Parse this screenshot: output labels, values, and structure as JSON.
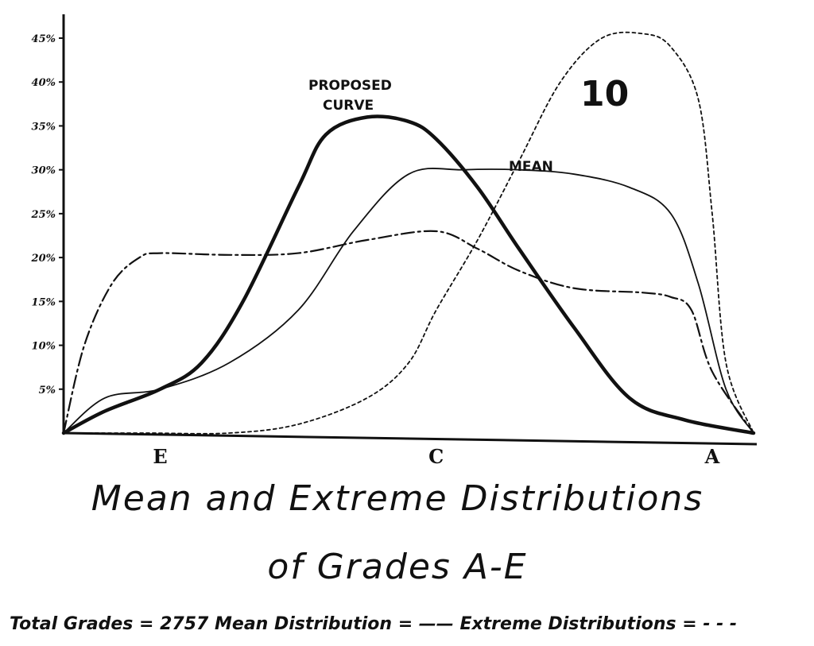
{
  "chart_data": {
    "type": "line",
    "figure_number": "10",
    "title_line1": "Mean and Extreme Distributions",
    "title_line2": "of Grades A-E",
    "footer": "Total Grades = 2757  Mean Distribution = ——  Extreme Distributions = - - -",
    "y_ticks": [
      "45%",
      "40%",
      "35%",
      "30%",
      "25%",
      "20%",
      "15%",
      "10%",
      "5%"
    ],
    "y_tick_values": [
      45,
      40,
      35,
      30,
      25,
      20,
      15,
      10,
      5
    ],
    "ylim": [
      0,
      45
    ],
    "x_tick_labels": [
      "E",
      "C",
      "A"
    ],
    "x_tick_positions": [
      1,
      3,
      5
    ],
    "xlim": [
      0.3,
      5.3
    ],
    "annotations": {
      "proposed_line1": "PROPOSED",
      "proposed_line2": "CURVE",
      "mean": "MEAN"
    },
    "series": [
      {
        "name": "PROPOSED CURVE",
        "style": "thick-solid",
        "x": [
          0.3,
          0.6,
          1.0,
          1.3,
          1.6,
          2.0,
          2.2,
          2.5,
          2.8,
          3.0,
          3.3,
          3.6,
          4.0,
          4.4,
          4.8,
          5.3
        ],
        "y": [
          0,
          2.5,
          5,
          8,
          15,
          28,
          34,
          36,
          35.5,
          33.5,
          28,
          21,
          12,
          4,
          1.5,
          0
        ]
      },
      {
        "name": "MEAN",
        "style": "thin-solid",
        "x": [
          0.3,
          0.6,
          1.0,
          1.5,
          2.0,
          2.4,
          2.8,
          3.2,
          3.6,
          4.0,
          4.4,
          4.7,
          4.9,
          5.1,
          5.3
        ],
        "y": [
          0,
          4,
          5,
          8,
          14,
          23,
          29.5,
          30,
          30,
          29.5,
          28,
          25,
          17,
          5,
          0
        ]
      },
      {
        "name": "",
        "style": "dash-dot",
        "x": [
          0.3,
          0.45,
          0.65,
          0.85,
          1.0,
          1.5,
          2.0,
          2.5,
          3.0,
          3.3,
          3.6,
          4.0,
          4.5,
          4.7,
          4.85,
          5.0,
          5.3
        ],
        "y": [
          0,
          10,
          17,
          20,
          20.5,
          20.3,
          20.5,
          22,
          23,
          21,
          18.5,
          16.5,
          16,
          15.5,
          14,
          7,
          0
        ]
      },
      {
        "name": "",
        "style": "dotted",
        "x": [
          0.3,
          0.9,
          1.5,
          2.0,
          2.5,
          2.8,
          3.0,
          3.3,
          3.6,
          3.9,
          4.2,
          4.5,
          4.7,
          4.9,
          5.0,
          5.1,
          5.3
        ],
        "y": [
          0,
          0,
          0,
          1,
          4,
          8,
          14,
          22,
          31,
          40,
          45,
          45.5,
          44,
          38,
          25,
          8,
          0
        ]
      }
    ]
  }
}
